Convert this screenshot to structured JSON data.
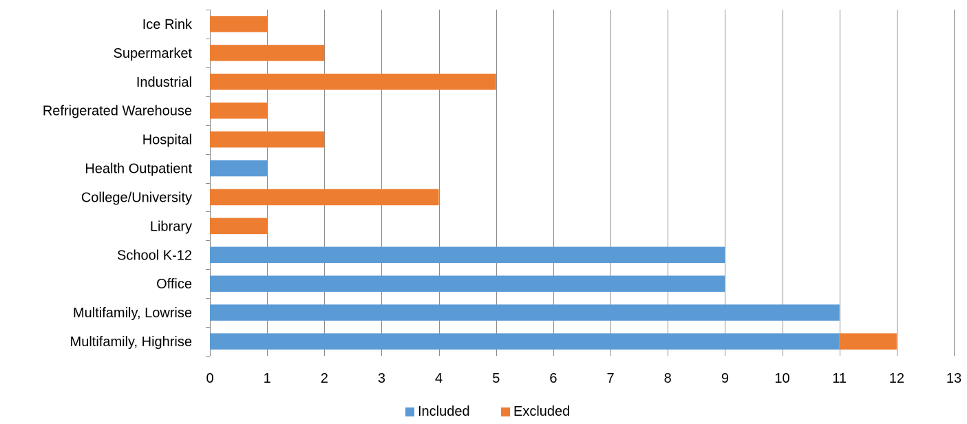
{
  "chart_data": {
    "type": "bar",
    "orientation": "horizontal",
    "stacked": true,
    "categories": [
      "Ice Rink",
      "Supermarket",
      "Industrial",
      "Refrigerated Warehouse",
      "Hospital",
      "Health Outpatient",
      "College/University",
      "Library",
      "School K-12",
      "Office",
      "Multifamily, Lowrise",
      "Multifamily, Highrise"
    ],
    "series": [
      {
        "name": "Included",
        "color": "#5b9bd5",
        "values": [
          0,
          0,
          0,
          0,
          0,
          1,
          0,
          0,
          9,
          9,
          11,
          11
        ]
      },
      {
        "name": "Excluded",
        "color": "#ed7d31",
        "values": [
          1,
          2,
          5,
          1,
          2,
          0,
          4,
          1,
          0,
          0,
          0,
          1
        ]
      }
    ],
    "xlim": [
      0,
      13
    ],
    "xticks": [
      "0",
      "1",
      "2",
      "3",
      "4",
      "5",
      "6",
      "7",
      "8",
      "9",
      "10",
      "11",
      "12",
      "13"
    ],
    "grid": "vertical",
    "legend": "bottom",
    "title": "",
    "xlabel": "",
    "ylabel": ""
  }
}
